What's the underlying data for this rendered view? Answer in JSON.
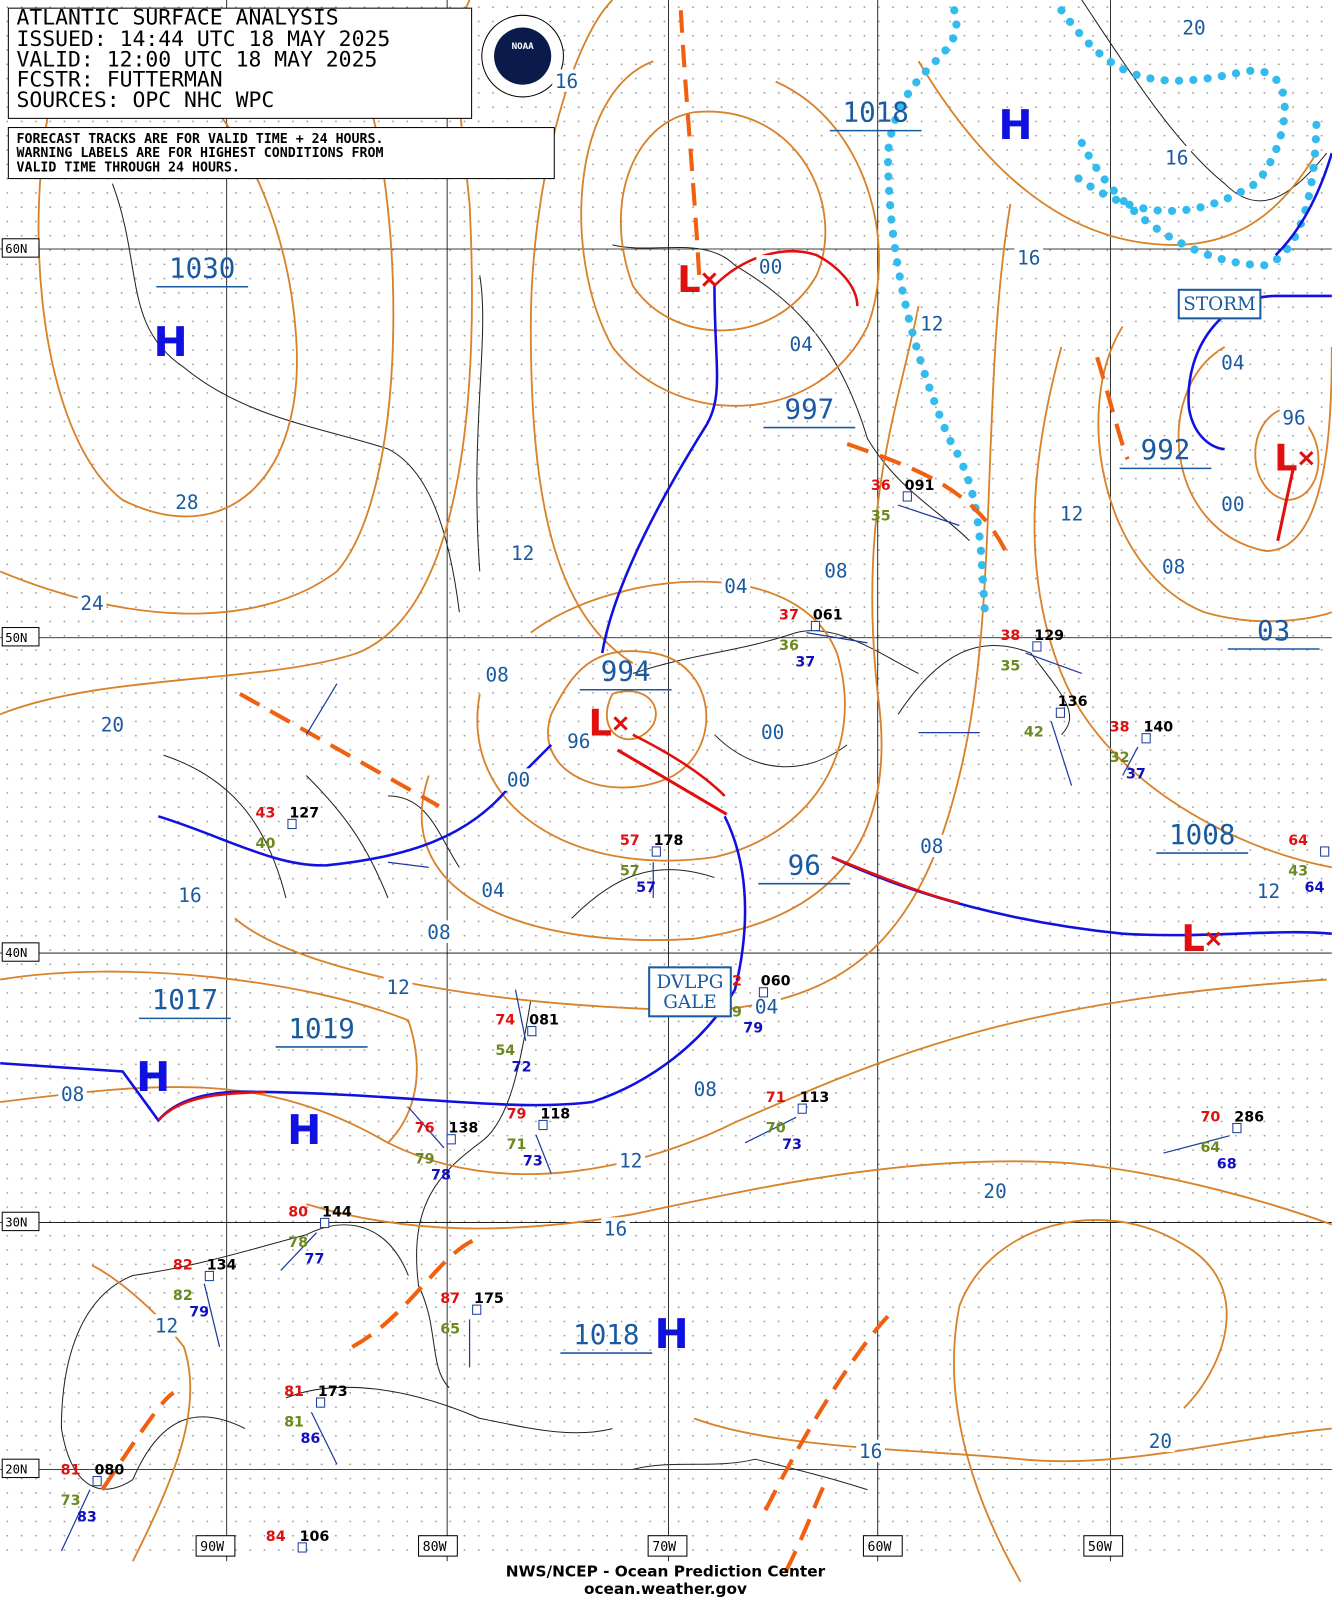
{
  "header": {
    "lines": [
      "ATLANTIC SURFACE ANALYSIS",
      "ISSUED: 14:44 UTC 18 MAY 2025",
      "VALID: 12:00 UTC 18 MAY 2025",
      "FCSTR: FUTTERMAN",
      "SOURCES: OPC NHC WPC"
    ],
    "notice": [
      "FORECAST TRACKS ARE FOR VALID TIME + 24 HOURS.",
      "WARNING LABELS ARE FOR HIGHEST CONDITIONS FROM",
      "VALID TIME THROUGH 24 HOURS."
    ],
    "logo": "NOAA"
  },
  "grid": {
    "latitudes": [
      "60N",
      "50N",
      "40N",
      "30N",
      "20N"
    ],
    "longitudes": [
      "90W",
      "80W",
      "70W",
      "60W",
      "50W"
    ]
  },
  "pressure_centers": [
    "1030",
    "1018",
    "997",
    "992",
    "994",
    "1008",
    "96",
    "03",
    "1017",
    "1019",
    "1018"
  ],
  "highs": [
    "H",
    "H",
    "H",
    "H",
    "H"
  ],
  "lows": [
    "L",
    "L",
    "L",
    "L"
  ],
  "isobar_labels": [
    "16",
    "20",
    "16",
    "16",
    "12",
    "04",
    "00",
    "04",
    "96",
    "00",
    "12",
    "08",
    "28",
    "24",
    "12",
    "04",
    "08",
    "20",
    "08",
    "96",
    "00",
    "00",
    "16",
    "04",
    "08",
    "08",
    "12",
    "12",
    "04",
    "08",
    "08",
    "12",
    "20",
    "16",
    "12",
    "16",
    "20"
  ],
  "warnings": [
    [
      "DVLPG",
      "GALE"
    ],
    [
      "STORM"
    ]
  ],
  "stations": [
    {
      "t": "36",
      "p": "091",
      "d": "35"
    },
    {
      "t": "37",
      "p": "061",
      "d": "36",
      "s": "37"
    },
    {
      "t": "38",
      "p": "129",
      "d": "35"
    },
    {
      "p": "136",
      "d": "42"
    },
    {
      "t": "38",
      "p": "140",
      "d": "32",
      "s": "37"
    },
    {
      "t": "43",
      "p": "127",
      "d": "40"
    },
    {
      "t": "57",
      "p": "178",
      "d": "57",
      "s": "57"
    },
    {
      "t": "64",
      "d": "43",
      "s": "64"
    },
    {
      "t": "74",
      "p": "081",
      "d": "54",
      "s": "72"
    },
    {
      "t": "76",
      "p": "138",
      "d": "79",
      "s": "78"
    },
    {
      "t": "79",
      "p": "118",
      "d": "71",
      "s": "73"
    },
    {
      "t": "71",
      "p": "113",
      "d": "70",
      "s": "73"
    },
    {
      "t": "70",
      "p": "286",
      "d": "64",
      "s": "68"
    },
    {
      "t": "80",
      "p": "144",
      "d": "78",
      "s": "77"
    },
    {
      "t": "82",
      "p": "134",
      "d": "82",
      "s": "79"
    },
    {
      "t": "87",
      "p": "175",
      "d": "65"
    },
    {
      "t": "81",
      "p": "173",
      "d": "81",
      "s": "86"
    },
    {
      "t": "81",
      "p": "080",
      "d": "73",
      "s": "83"
    },
    {
      "t": "84",
      "p": "106"
    },
    {
      "t": "2",
      "p": "060",
      "d": "9",
      "s": "79"
    }
  ],
  "footer": [
    "NWS/NCEP - Ocean Prediction Center",
    "ocean.weather.gov"
  ]
}
